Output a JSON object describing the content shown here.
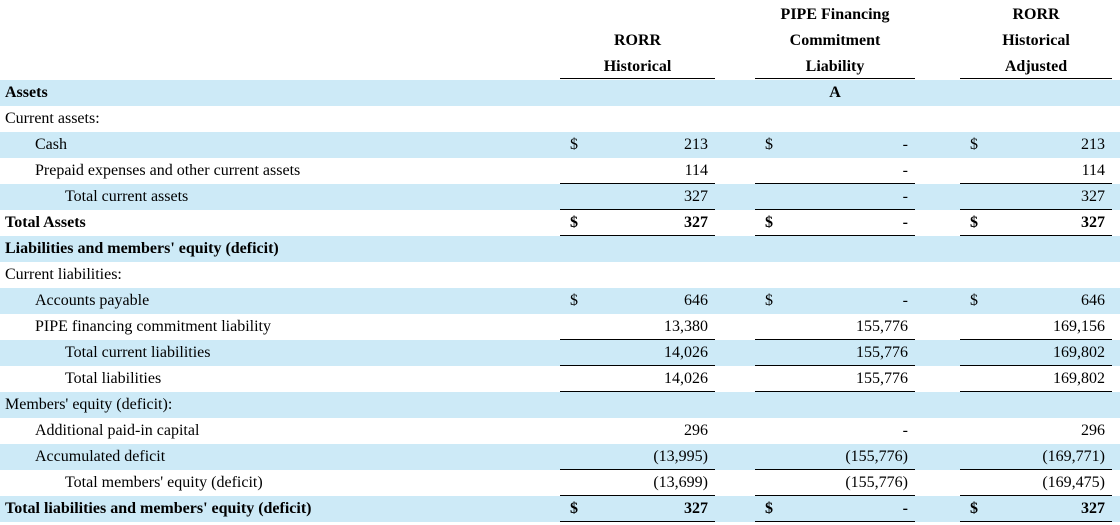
{
  "table": {
    "columns": [
      {
        "lines": [
          "RORR",
          "Historical"
        ]
      },
      {
        "lines": [
          "PIPE Financing",
          "Commitment",
          "Liability"
        ],
        "note": "A"
      },
      {
        "lines": [
          "RORR",
          "Historical",
          "Adjusted"
        ]
      }
    ],
    "rows": [
      {
        "label": "Assets"
      },
      {
        "label": "Current assets:"
      },
      {
        "label": "Cash",
        "cells": [
          {
            "currency": "$",
            "value": "213"
          },
          {
            "currency": "$",
            "value": "-"
          },
          {
            "currency": "$",
            "value": "213"
          }
        ]
      },
      {
        "label": "Prepaid expenses and other current assets",
        "cells": [
          {
            "value": "114"
          },
          {
            "value": "-"
          },
          {
            "value": "114"
          }
        ]
      },
      {
        "label": "Total current assets",
        "cells": [
          {
            "value": "327"
          },
          {
            "value": "-"
          },
          {
            "value": "327"
          }
        ]
      },
      {
        "label": "Total Assets",
        "cells": [
          {
            "currency": "$",
            "value": "327"
          },
          {
            "currency": "$",
            "value": "-"
          },
          {
            "currency": "$",
            "value": "327"
          }
        ]
      },
      {
        "label": "Liabilities and members' equity (deficit)"
      },
      {
        "label": "Current liabilities:"
      },
      {
        "label": "Accounts payable",
        "cells": [
          {
            "currency": "$",
            "value": "646"
          },
          {
            "currency": "$",
            "value": "-"
          },
          {
            "currency": "$",
            "value": "646"
          }
        ]
      },
      {
        "label": "PIPE financing commitment liability",
        "cells": [
          {
            "value": "13,380"
          },
          {
            "value": "155,776"
          },
          {
            "value": "169,156"
          }
        ]
      },
      {
        "label": "Total current liabilities",
        "cells": [
          {
            "value": "14,026"
          },
          {
            "value": "155,776"
          },
          {
            "value": "169,802"
          }
        ]
      },
      {
        "label": "Total liabilities",
        "cells": [
          {
            "value": "14,026"
          },
          {
            "value": "155,776"
          },
          {
            "value": "169,802"
          }
        ]
      },
      {
        "label": "Members' equity (deficit):"
      },
      {
        "label": "Additional paid-in capital",
        "cells": [
          {
            "value": "296"
          },
          {
            "value": "-"
          },
          {
            "value": "296"
          }
        ]
      },
      {
        "label": "Accumulated deficit",
        "cells": [
          {
            "value": "(13,995)"
          },
          {
            "value": "(155,776)"
          },
          {
            "value": "(169,771)"
          }
        ]
      },
      {
        "label": "Total members' equity (deficit)",
        "cells": [
          {
            "value": "(13,699)"
          },
          {
            "value": "(155,776)"
          },
          {
            "value": "(169,475)"
          }
        ]
      },
      {
        "label": "Total liabilities and members' equity (deficit)",
        "cells": [
          {
            "currency": "$",
            "value": "327"
          },
          {
            "currency": "$",
            "value": "-"
          },
          {
            "currency": "$",
            "value": "327"
          }
        ]
      }
    ]
  }
}
